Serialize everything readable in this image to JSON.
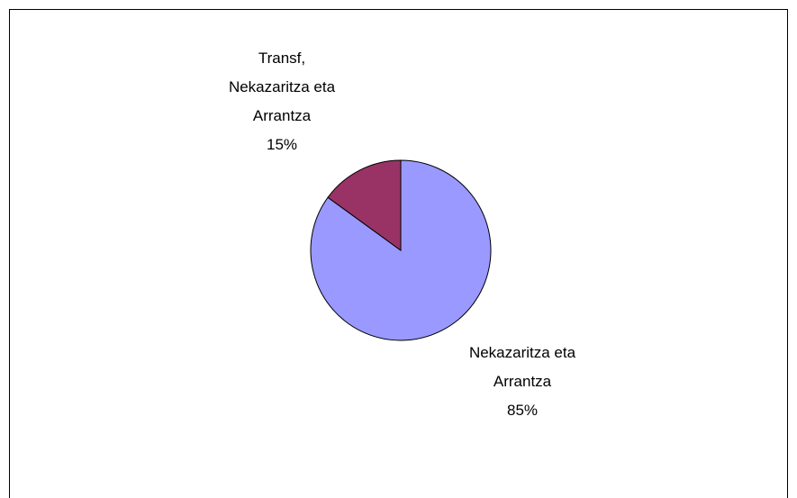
{
  "chart_data": {
    "type": "pie",
    "categories": [
      "Nekazaritza eta Arrantza",
      "Transf, Nekazaritza eta Arrantza"
    ],
    "values": [
      85,
      15
    ],
    "value_labels": [
      "85%",
      "15%"
    ],
    "colors": [
      "#9999ff",
      "#993366"
    ]
  }
}
